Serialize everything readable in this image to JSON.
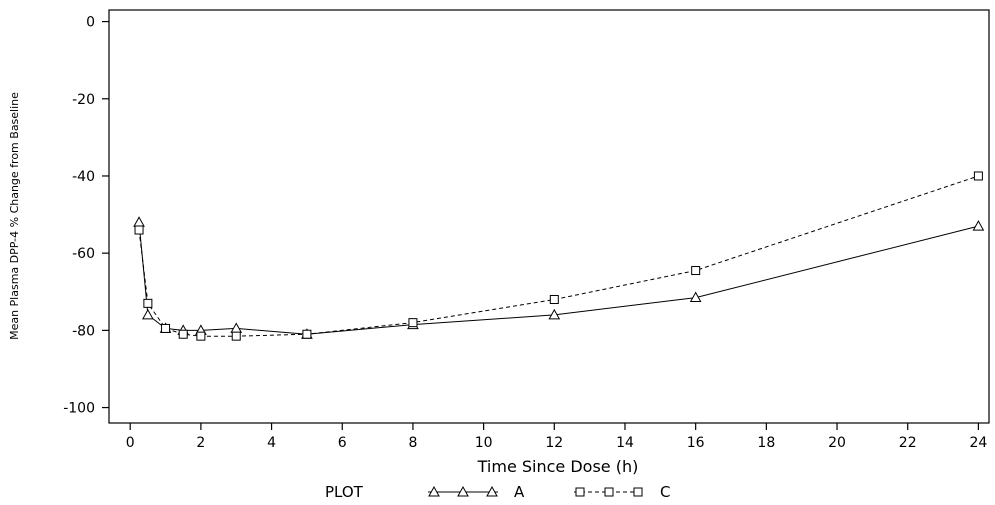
{
  "chart_data": {
    "type": "line",
    "xlabel": "Time Since Dose (h)",
    "ylabel": "Mean Plasma DPP-4 % Change from Baseline",
    "xlim": [
      -0.6,
      24.3
    ],
    "ylim": [
      -104,
      3
    ],
    "xticks": [
      0,
      2,
      4,
      6,
      8,
      10,
      12,
      14,
      16,
      18,
      20,
      22,
      24
    ],
    "yticks": [
      0,
      -20,
      -40,
      -60,
      -80,
      -100
    ],
    "grid": false,
    "legend": {
      "title": "PLOT",
      "position": "bottom-center"
    },
    "series": [
      {
        "name": "A",
        "marker": "triangle",
        "line_style": "solid",
        "x": [
          0.25,
          0.5,
          1,
          1.5,
          2,
          3,
          5,
          8,
          12,
          16,
          24
        ],
        "y": [
          -52,
          -76,
          -79.5,
          -80,
          -80,
          -79.5,
          -81,
          -78.5,
          -76,
          -71.5,
          -53
        ]
      },
      {
        "name": "C",
        "marker": "square",
        "line_style": "dashed",
        "x": [
          0.25,
          0.5,
          1,
          1.5,
          2,
          3,
          5,
          8,
          12,
          16,
          24
        ],
        "y": [
          -54,
          -73,
          -79.5,
          -81,
          -81.5,
          -81.5,
          -81,
          -78,
          -72,
          -64.5,
          -40
        ]
      }
    ]
  }
}
